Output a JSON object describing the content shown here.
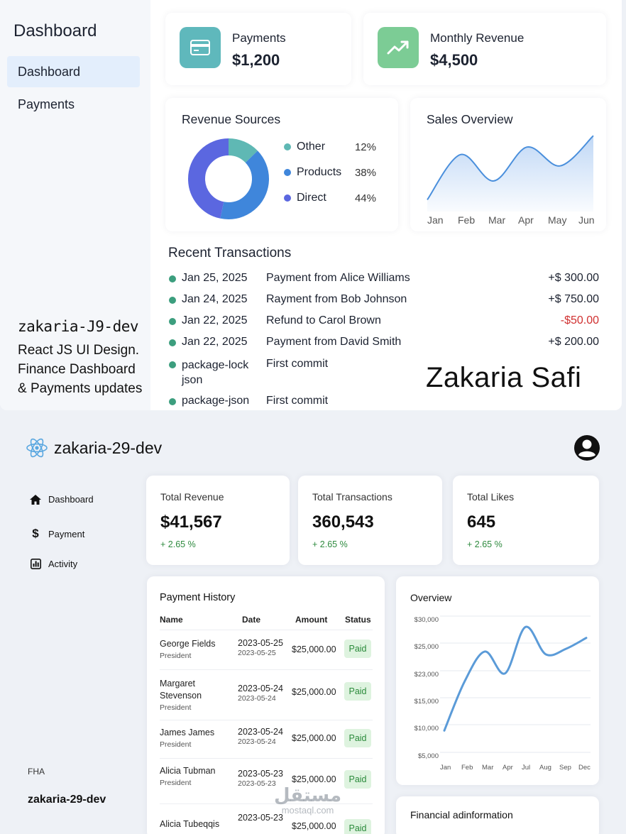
{
  "top": {
    "sidebar": {
      "title": "Dashboard",
      "items": [
        {
          "label": "Dashboard",
          "active": true
        },
        {
          "label": "Payments",
          "active": false
        }
      ],
      "brand": "zakaria-J9-dev",
      "description": [
        "React JS UI Design.",
        "Finance Dashboard",
        "& Payments updates"
      ]
    },
    "kpis": [
      {
        "label": "Payments",
        "value": "$1,200",
        "icon": "credit-card-icon",
        "color": "#5fb8bc"
      },
      {
        "label": "Monthly Revenue",
        "value": "$4,500",
        "icon": "trending-up-icon",
        "color": "#7ccc95"
      }
    ],
    "revenue_sources": {
      "title": "Revenue Sources",
      "legend": [
        {
          "name": "Other",
          "pct": "12%",
          "color": "#5fb8b4"
        },
        {
          "name": "Products",
          "pct": "38%",
          "color": "#3f86db"
        },
        {
          "name": "Direct",
          "pct": "44%",
          "color": "#5b67e0"
        }
      ]
    },
    "sales_overview": {
      "title": "Sales Overview",
      "months": [
        "Jan",
        "Feb",
        "Mar",
        "Apr",
        "May",
        "Jun"
      ]
    },
    "recent_transactions": {
      "title": "Recent Transactions",
      "rows": [
        {
          "date": "Jan 25, 2025",
          "desc": "Payment from",
          "name": "Alice Williams",
          "amount": "+$ 300.00",
          "negative": false
        },
        {
          "date": "Jan 24, 2025",
          "desc": "Rayment from",
          "name": "Bob Johnson",
          "amount": "+$ 750.00",
          "negative": false
        },
        {
          "date": "Jan 22, 2025",
          "desc": "Refund to",
          "name": "Carol Brown",
          "amount": "-$50.00",
          "negative": true
        },
        {
          "date": "Jan 22, 2025",
          "desc": "Payment from",
          "name": "David Smith",
          "amount": "+$ 200.00",
          "negative": false
        },
        {
          "date": "package-lock json",
          "desc": "First commit",
          "name": "",
          "amount": "",
          "negative": false
        },
        {
          "date": "package-json",
          "desc": "First commit",
          "name": "",
          "amount": "",
          "negative": false
        }
      ]
    },
    "signature": "Zakaria Safi"
  },
  "bottom": {
    "brand": "zakaria-29-dev",
    "nav": [
      {
        "label": "Dashboard",
        "icon": "home-icon"
      },
      {
        "label": "Payment",
        "icon": "dollar-icon"
      },
      {
        "label": "Activity",
        "icon": "activity-chart-icon"
      }
    ],
    "footer": {
      "label": "FHA",
      "brand": "zakaria-29-dev"
    },
    "stats": [
      {
        "label": "Total Revenue",
        "value": "$41,567",
        "change": "+ 2.65 %"
      },
      {
        "label": "Total Transactions",
        "value": "360,543",
        "change": "+ 2.65 %"
      },
      {
        "label": "Total Likes",
        "value": "645",
        "change": "+ 2.65 %"
      }
    ],
    "payment_history": {
      "title": "Payment History",
      "columns": [
        "Name",
        "Date",
        "Amount",
        "Status"
      ],
      "rows": [
        {
          "name": "George Fields",
          "role": "President",
          "date": "2023-05-25",
          "date_sub": "2023-05-25",
          "amount": "$25,000.00",
          "status": "Paid"
        },
        {
          "name": "Margaret Stevenson",
          "role": "President",
          "date": "2023-05-24",
          "date_sub": "2023-05-24",
          "amount": "$25,000.00",
          "status": "Paid"
        },
        {
          "name": "James James",
          "role": "President",
          "date": "2023-05-24",
          "date_sub": "2023-05-24",
          "amount": "$25,000.00",
          "status": "Paid"
        },
        {
          "name": "Alicia Tubman",
          "role": "President",
          "date": "2023-05-23",
          "date_sub": "2023-05-23",
          "amount": "$25,000.00",
          "status": "Paid"
        },
        {
          "name": "Alicia Tubeqqis",
          "role": "",
          "date": "2023-05-23",
          "date_sub": "",
          "amount": "$25,000.00",
          "status": "Paid"
        }
      ]
    },
    "overview": {
      "title": "Overview",
      "y_labels": [
        "$30,000",
        "$25,000",
        "$23,000",
        "$15,000",
        "$10,000",
        "$5,000"
      ],
      "x_labels": [
        "Jan",
        "Feb",
        "Mar",
        "Apr",
        "Jul",
        "Aug",
        "Sep",
        "Dec"
      ]
    },
    "financial_info": {
      "title": "Financial adinformation"
    }
  },
  "watermark": {
    "arabic": "مستقل",
    "latin": "mostaql.com"
  },
  "chart_data": [
    {
      "type": "pie",
      "title": "Revenue Sources",
      "categories": [
        "Other",
        "Products",
        "Direct"
      ],
      "values": [
        12,
        38,
        44
      ],
      "colors": [
        "#5fb8b4",
        "#3f86db",
        "#5b67e0"
      ]
    },
    {
      "type": "area",
      "title": "Sales Overview",
      "categories": [
        "Jan",
        "Feb",
        "Mar",
        "Apr",
        "May",
        "Jun"
      ],
      "values": [
        10,
        70,
        35,
        80,
        55,
        95
      ],
      "ylim": [
        0,
        100
      ]
    },
    {
      "type": "line",
      "title": "Overview",
      "categories": [
        "Jan",
        "Feb",
        "Mar",
        "Apr",
        "Jul",
        "Aug",
        "Sep",
        "Dec"
      ],
      "values": [
        9000,
        18000,
        23500,
        19500,
        28000,
        23000,
        24000,
        26000
      ],
      "ylim": [
        5000,
        30000
      ]
    }
  ]
}
